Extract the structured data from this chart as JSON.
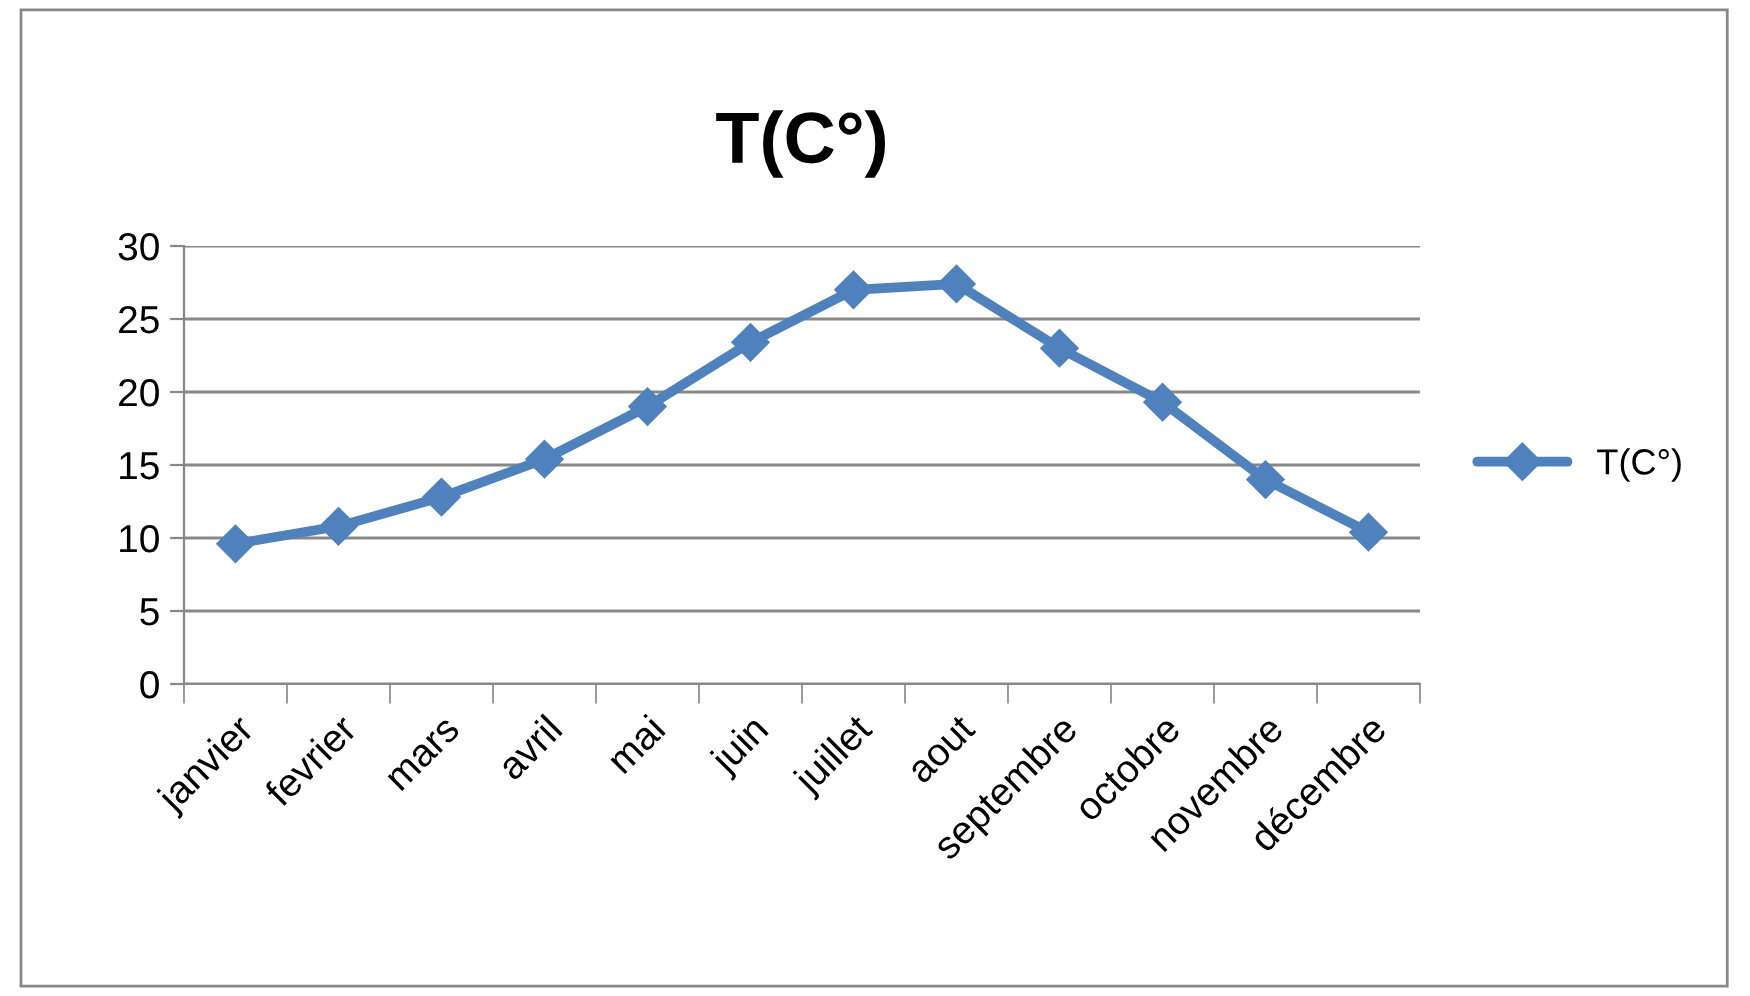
{
  "chart_data": {
    "type": "line",
    "title": "T(C°)",
    "categories": [
      "janvier",
      "fevrier",
      "mars",
      "avril",
      "mai",
      "juin",
      "juillet",
      "aout",
      "septembre",
      "octobre",
      "novembre",
      "décembre"
    ],
    "series": [
      {
        "name": "T(C°)",
        "color": "#4f81bd",
        "values": [
          9.6,
          10.8,
          12.8,
          15.4,
          19.0,
          23.4,
          27.0,
          27.4,
          23.0,
          19.3,
          14.0,
          10.4
        ]
      }
    ],
    "ylim": [
      0,
      30
    ],
    "yticks": [
      0,
      5,
      10,
      15,
      20,
      25,
      30
    ],
    "grid": "y",
    "legend": "right",
    "marker": "diamond",
    "line_style": "solid"
  }
}
